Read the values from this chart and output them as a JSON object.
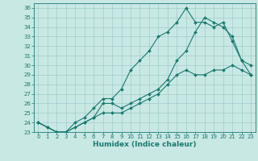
{
  "title": "",
  "xlabel": "Humidex (Indice chaleur)",
  "bg_color": "#c8e8e4",
  "grid_color": "#a0cccc",
  "line_color": "#1a7a6e",
  "xlim": [
    -0.5,
    23.5
  ],
  "ylim": [
    23,
    36.5
  ],
  "xticks": [
    0,
    1,
    2,
    3,
    4,
    5,
    6,
    7,
    8,
    9,
    10,
    11,
    12,
    13,
    14,
    15,
    16,
    17,
    18,
    19,
    20,
    21,
    22,
    23
  ],
  "yticks": [
    23,
    24,
    25,
    26,
    27,
    28,
    29,
    30,
    31,
    32,
    33,
    34,
    35,
    36
  ],
  "line1_x": [
    0,
    1,
    2,
    3,
    4,
    5,
    6,
    7,
    8,
    9,
    10,
    11,
    12,
    13,
    14,
    15,
    16,
    17,
    18,
    19,
    20,
    21,
    22,
    23
  ],
  "line1_y": [
    24.0,
    23.5,
    23.0,
    23.0,
    23.5,
    24.0,
    24.5,
    25.0,
    25.0,
    25.0,
    25.5,
    26.0,
    26.5,
    27.0,
    28.0,
    29.0,
    29.5,
    29.0,
    29.0,
    29.5,
    29.5,
    30.0,
    29.5,
    29.0
  ],
  "line2_x": [
    0,
    1,
    2,
    3,
    4,
    5,
    6,
    7,
    8,
    9,
    10,
    11,
    12,
    13,
    14,
    15,
    16,
    17,
    18,
    19,
    20,
    21,
    22,
    23
  ],
  "line2_y": [
    24.0,
    23.5,
    23.0,
    23.0,
    24.0,
    24.5,
    25.5,
    26.5,
    26.5,
    27.5,
    29.5,
    30.5,
    31.5,
    33.0,
    33.5,
    34.5,
    36.0,
    34.5,
    34.5,
    34.0,
    34.5,
    32.5,
    30.5,
    29.0
  ],
  "line3_x": [
    0,
    2,
    3,
    5,
    6,
    7,
    8,
    9,
    10,
    11,
    12,
    13,
    14,
    15,
    16,
    17,
    18,
    19,
    20,
    21,
    22,
    23
  ],
  "line3_y": [
    24.0,
    23.0,
    23.0,
    24.0,
    24.5,
    26.0,
    26.0,
    25.5,
    26.0,
    26.5,
    27.0,
    27.5,
    28.5,
    30.5,
    31.5,
    33.5,
    35.0,
    34.5,
    34.0,
    33.0,
    30.5,
    30.0
  ],
  "markersize": 2.0,
  "linewidth": 0.8,
  "tick_fontsize": 5.0,
  "xlabel_fontsize": 6.5
}
